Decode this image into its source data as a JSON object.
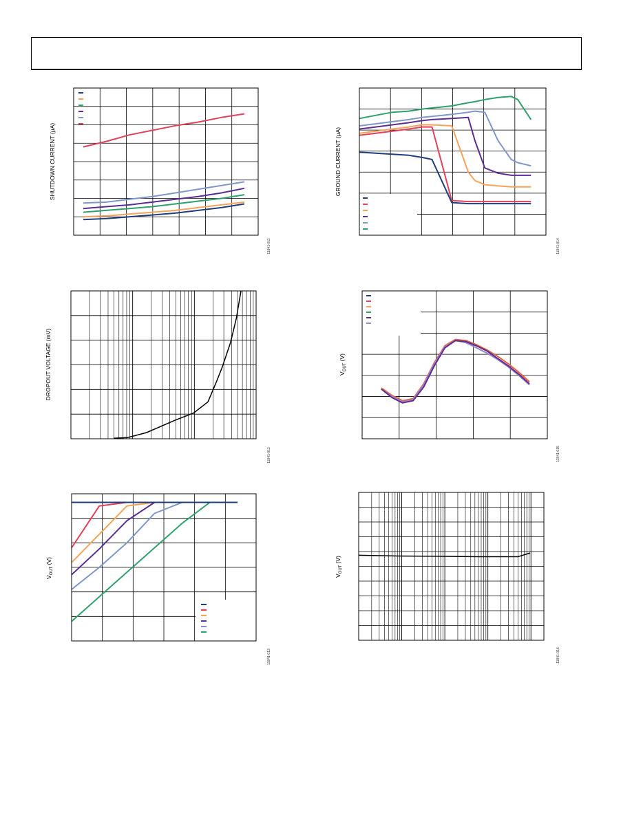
{
  "header": {
    "title": ""
  },
  "charts": {
    "c1": {
      "ylabel": "SHUTDOWN CURRENT (μA)",
      "fig_id": "11841-011"
    },
    "c2": {
      "ylabel": "GROUND CURRENT (μA)",
      "fig_id": "11841-014"
    },
    "c3": {
      "ylabel": "DROPOUT VOLTAGE (mV)",
      "fig_id": "11841-012"
    },
    "c4": {
      "ylabel_main": "V",
      "ylabel_sub": "OUT",
      "ylabel_unit": " (V)",
      "fig_id": "11841-015"
    },
    "c5": {
      "ylabel_main": "V",
      "ylabel_sub": "OUT",
      "ylabel_unit": " (V)",
      "fig_id": "11841-013"
    },
    "c6": {
      "ylabel_main": "V",
      "ylabel_sub": "OUT",
      "ylabel_unit": " (V)",
      "fig_id": "11841-016"
    }
  },
  "chart_data": [
    {
      "type": "line",
      "ylabel": "SHUTDOWN CURRENT (μA)",
      "x": [
        0,
        1,
        2,
        3,
        4,
        5,
        6,
        7
      ],
      "ylim": [
        0,
        8
      ],
      "grid": true,
      "legend": "top-left",
      "series": [
        {
          "color": "#e0405a",
          "values": [
            4.8,
            5.1,
            5.45,
            5.7,
            5.95,
            6.15,
            6.4,
            6.6
          ]
        },
        {
          "color": "#7e96c8",
          "values": [
            1.75,
            1.8,
            1.95,
            2.1,
            2.3,
            2.5,
            2.7,
            2.9
          ]
        },
        {
          "color": "#5a2d91",
          "values": [
            1.45,
            1.55,
            1.65,
            1.8,
            1.95,
            2.1,
            2.3,
            2.55
          ]
        },
        {
          "color": "#2ea06a",
          "values": [
            1.25,
            1.35,
            1.45,
            1.55,
            1.7,
            1.85,
            2.0,
            2.2
          ]
        },
        {
          "color": "#f7a25a",
          "values": [
            1.0,
            1.05,
            1.15,
            1.25,
            1.35,
            1.5,
            1.65,
            1.8
          ]
        },
        {
          "color": "#1f3d7a",
          "values": [
            0.85,
            0.9,
            1.0,
            1.1,
            1.2,
            1.35,
            1.5,
            1.7
          ]
        }
      ]
    },
    {
      "type": "line",
      "ylabel": "GROUND CURRENT (μA)",
      "x": [
        0,
        0.5,
        1,
        1.5,
        1.7,
        1.9,
        2.2,
        2.8,
        3.3,
        3.5,
        3.8,
        4.2,
        4.6,
        4.8,
        5.2
      ],
      "ylim": [
        0,
        7
      ],
      "grid": true,
      "legend": "bottom-left",
      "series": [
        {
          "color": "#2ea06a",
          "values": [
            5.55,
            5.7,
            5.85,
            5.9,
            5.95,
            6.0,
            6.05,
            6.15,
            6.3,
            6.35,
            6.45,
            6.55,
            6.6,
            6.45,
            5.5
          ]
        },
        {
          "color": "#7e96c8",
          "values": [
            5.2,
            5.3,
            5.4,
            5.5,
            5.55,
            5.6,
            5.65,
            5.75,
            5.85,
            5.9,
            5.85,
            4.5,
            3.6,
            3.45,
            3.3
          ]
        },
        {
          "color": "#5a2d91",
          "values": [
            5.05,
            5.15,
            5.25,
            5.35,
            5.4,
            5.45,
            5.5,
            5.55,
            5.6,
            4.5,
            3.2,
            2.95,
            2.85,
            2.85,
            2.85
          ]
        },
        {
          "color": "#f7a25a",
          "values": [
            4.85,
            4.95,
            5.05,
            5.15,
            5.2,
            5.25,
            5.25,
            5.2,
            3.0,
            2.6,
            2.4,
            2.35,
            2.3,
            2.3,
            2.3
          ]
        },
        {
          "color": "#e0405a",
          "values": [
            4.75,
            4.85,
            4.95,
            5.05,
            5.1,
            5.15,
            5.15,
            1.65,
            1.6,
            1.6,
            1.6,
            1.6,
            1.6,
            1.6,
            1.6
          ]
        },
        {
          "color": "#1f3d7a",
          "values": [
            3.95,
            3.9,
            3.85,
            3.8,
            3.75,
            3.7,
            3.6,
            1.55,
            1.5,
            1.5,
            1.5,
            1.5,
            1.5,
            1.5,
            1.5
          ]
        }
      ]
    },
    {
      "type": "line",
      "ylabel": "DROPOUT VOLTAGE (mV)",
      "xscale": "log",
      "x": [
        1,
        2,
        5,
        10,
        20,
        50,
        100,
        150,
        200,
        300,
        400,
        500
      ],
      "ylim": [
        0,
        6
      ],
      "grid": true,
      "series": [
        {
          "color": "#000000",
          "values": [
            0.02,
            0.05,
            0.25,
            0.5,
            0.75,
            1.05,
            1.5,
            2.3,
            2.9,
            3.9,
            4.9,
            6.0
          ]
        }
      ]
    },
    {
      "type": "line",
      "ylabel": "VOUT (V)",
      "x": [
        0,
        0.25,
        0.5,
        0.75,
        1.0,
        1.25,
        1.5,
        1.75,
        2.0,
        2.25,
        2.5,
        2.75,
        3.0,
        3.25,
        3.5
      ],
      "ylim": [
        0,
        7
      ],
      "grid": true,
      "legend": "top-left",
      "series": [
        {
          "color": "#e8603c",
          "values": [
            2.4,
            2.05,
            1.8,
            1.9,
            2.6,
            3.6,
            4.4,
            4.7,
            4.65,
            4.45,
            4.2,
            3.9,
            3.55,
            3.15,
            2.7
          ]
        },
        {
          "color": "#9a86d0",
          "values": [
            2.35,
            2.0,
            1.75,
            1.85,
            2.55,
            3.55,
            4.35,
            4.65,
            4.55,
            4.3,
            4.05,
            3.75,
            3.4,
            3.0,
            2.55
          ]
        },
        {
          "color": "#5a2d91",
          "values": [
            2.35,
            1.95,
            1.7,
            1.8,
            2.45,
            3.45,
            4.3,
            4.65,
            4.6,
            4.4,
            4.15,
            3.8,
            3.45,
            3.05,
            2.6
          ]
        }
      ]
    },
    {
      "type": "line",
      "ylabel": "VOUT (V)",
      "x": [
        0,
        1,
        2,
        3,
        4,
        5,
        6
      ],
      "ylim": [
        0,
        6
      ],
      "grid": true,
      "legend": "bottom-right",
      "series": [
        {
          "color": "#e0405a",
          "values": [
            3.8,
            5.5,
            5.65,
            5.65,
            5.65,
            5.65,
            5.65
          ]
        },
        {
          "color": "#f7a25a",
          "values": [
            3.2,
            4.35,
            5.5,
            5.65,
            5.65,
            5.65,
            5.65
          ]
        },
        {
          "color": "#5a2d91",
          "values": [
            2.7,
            3.75,
            4.9,
            5.65,
            5.65,
            5.65,
            5.65
          ]
        },
        {
          "color": "#7e96c8",
          "values": [
            2.1,
            3.0,
            4.0,
            5.2,
            5.65,
            5.65,
            5.65
          ]
        },
        {
          "color": "#2ea06a",
          "values": [
            0.8,
            1.8,
            2.8,
            3.8,
            4.8,
            5.65,
            5.65
          ]
        },
        {
          "color": "#1f3d7a",
          "values": [
            5.65,
            5.65,
            5.65,
            5.65,
            5.65,
            5.65,
            5.65
          ]
        }
      ]
    },
    {
      "type": "line",
      "ylabel": "VOUT (V)",
      "xscale": "log",
      "x": [
        1,
        10,
        100,
        1000,
        10000,
        20000
      ],
      "ylim": [
        0,
        10
      ],
      "grid": true,
      "series": [
        {
          "color": "#000000",
          "values": [
            5.75,
            5.7,
            5.68,
            5.65,
            5.65,
            5.9
          ]
        }
      ]
    }
  ]
}
